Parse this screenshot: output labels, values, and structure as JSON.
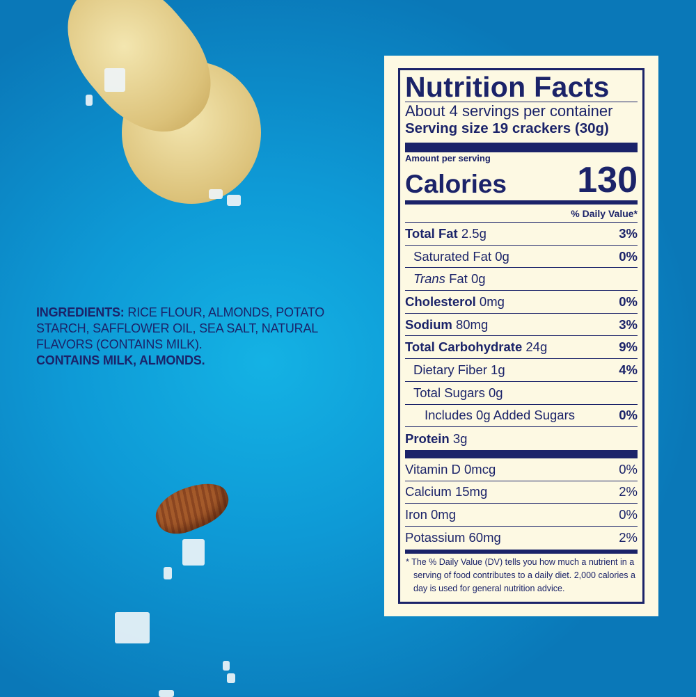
{
  "ingredients": {
    "label": "INGREDIENTS:",
    "text": " RICE FLOUR, ALMONDS, POTATO STARCH, SAFFLOWER OIL, SEA SALT, NATURAL FLAVORS (CONTAINS MILK).",
    "allergens": "CONTAINS MILK, ALMONDS."
  },
  "nutrition": {
    "title": "Nutrition Facts",
    "servings": "About 4 servings per container",
    "serving_size": "Serving size 19 crackers (30g)",
    "amount_per_serving": "Amount per serving",
    "calories_label": "Calories",
    "calories": "130",
    "daily_value_header": "% Daily Value*",
    "rows": [
      {
        "name": "Total Fat",
        "amount": "2.5g",
        "dv": "3%"
      },
      {
        "name": "Saturated Fat",
        "amount": "0g",
        "dv": "0%"
      },
      {
        "name": "Trans",
        "name2": "Fat",
        "amount": "0g",
        "dv": ""
      },
      {
        "name": "Cholesterol",
        "amount": "0mg",
        "dv": "0%"
      },
      {
        "name": "Sodium",
        "amount": "80mg",
        "dv": "3%"
      },
      {
        "name": "Total Carbohydrate",
        "amount": "24g",
        "dv": "9%"
      },
      {
        "name": "Dietary Fiber",
        "amount": "1g",
        "dv": "4%"
      },
      {
        "name": "Total Sugars",
        "amount": "0g",
        "dv": ""
      },
      {
        "name": "Includes 0g Added Sugars",
        "amount": "",
        "dv": "0%"
      },
      {
        "name": "Protein",
        "amount": "3g",
        "dv": ""
      }
    ],
    "vitamins": [
      {
        "label": "Vitamin D 0mcg",
        "dv": "0%"
      },
      {
        "label": "Calcium 15mg",
        "dv": "2%"
      },
      {
        "label": "Iron 0mg",
        "dv": "0%"
      },
      {
        "label": "Potassium 60mg",
        "dv": "2%"
      }
    ],
    "footnote": "* The % Daily Value (DV) tells you how much a nutrient in a serving of food contributes to a daily diet. 2,000 calories a day is used for general nutrition advice."
  },
  "colors": {
    "label_text": "#1b2369",
    "label_bg": "#fdf9e3",
    "background": "#0e9ad6"
  }
}
